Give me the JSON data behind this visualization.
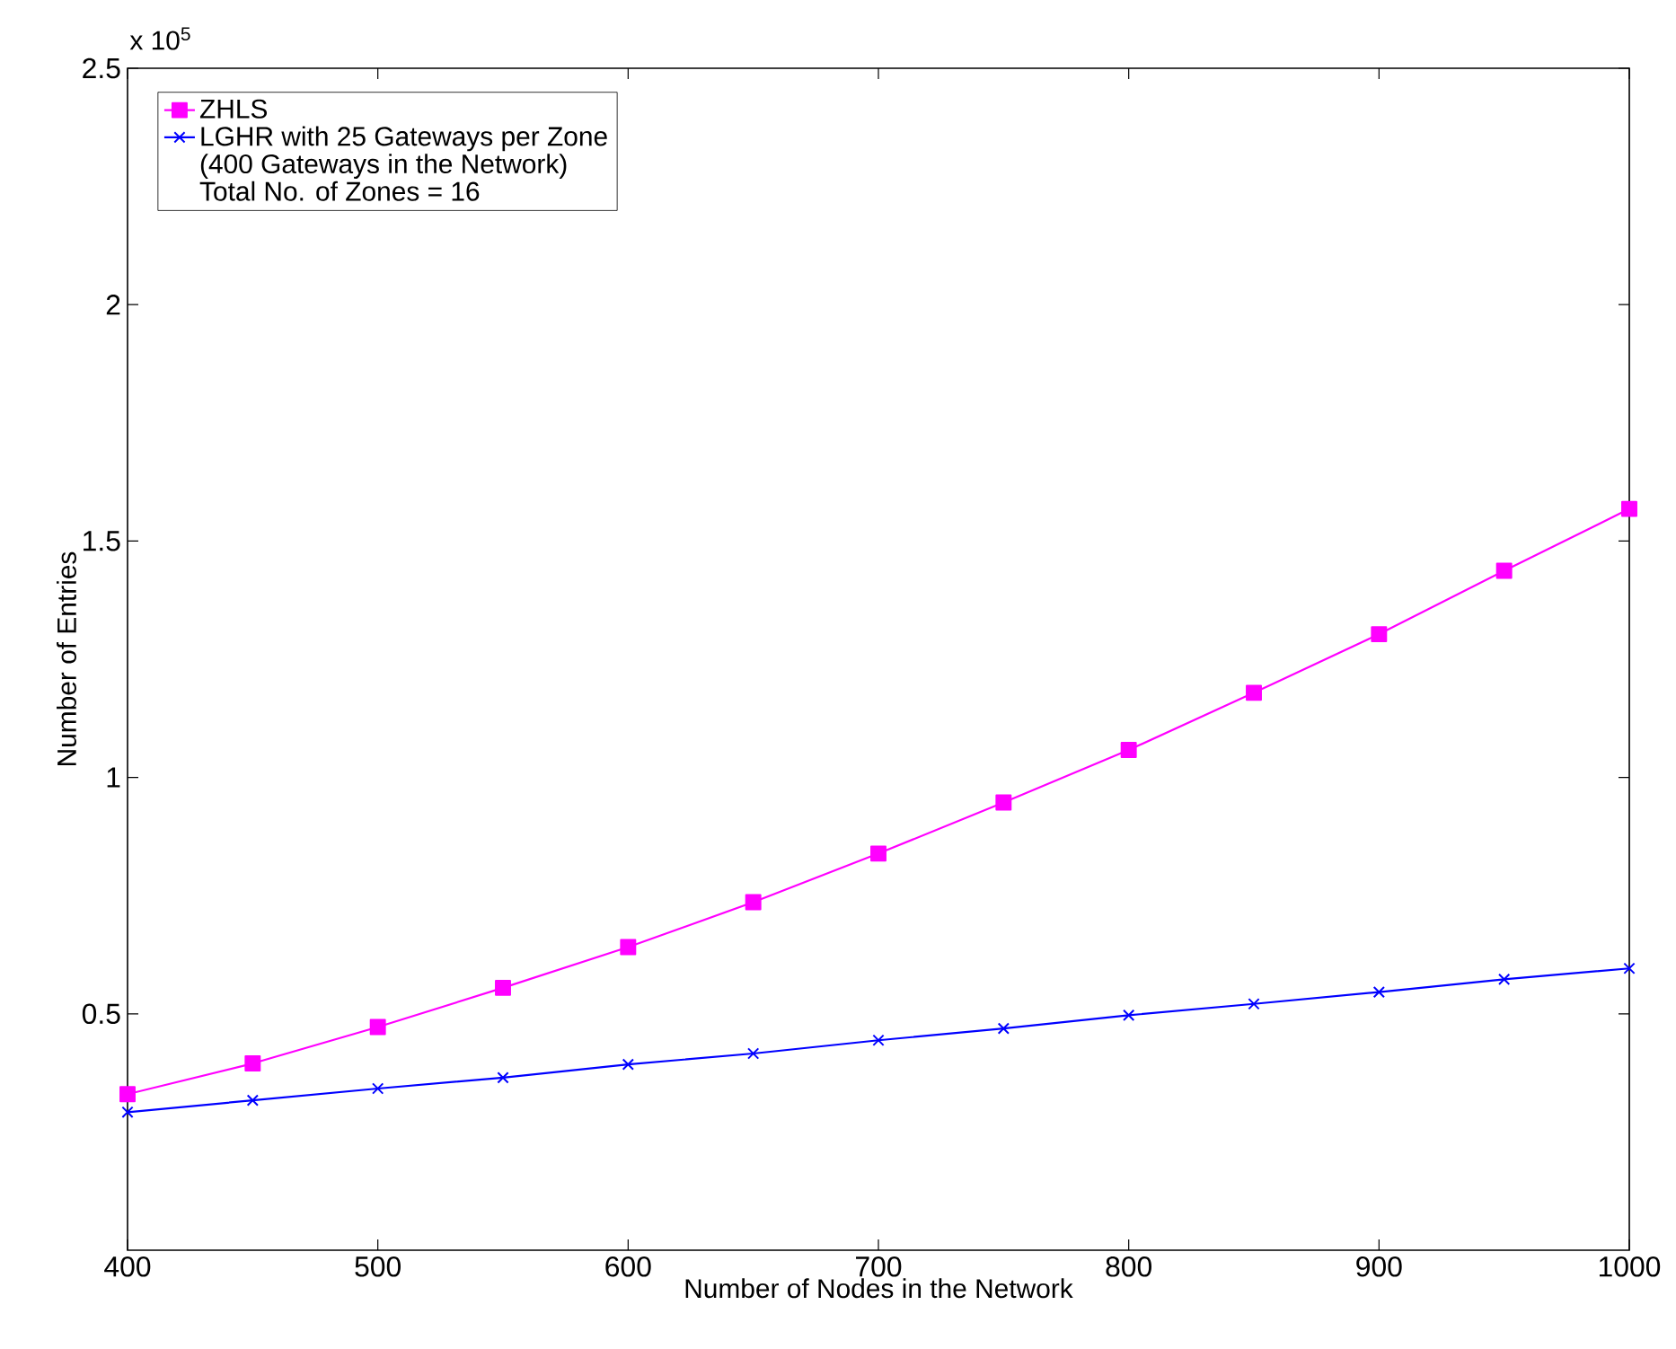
{
  "chart_data": {
    "type": "line",
    "xlabel": "Number of Nodes in the Network",
    "ylabel": "Number of Entries",
    "annotations": [
      "x 10$^{5}$",
      "(400 Gateways in the Network)",
      "Total No. of Zones = 16"
    ],
    "x": [
      400,
      450,
      500,
      550,
      600,
      650,
      700,
      750,
      800,
      850,
      900,
      950,
      1000
    ],
    "series": [
      {
        "name": "ZHLS",
        "color": "#ff00ff",
        "marker": "square",
        "values": [
          0.33,
          0.395,
          0.472,
          0.555,
          0.641,
          0.736,
          0.839,
          0.947,
          1.058,
          1.179,
          1.303,
          1.437,
          1.568
        ]
      },
      {
        "name": "LGHR with 25 Gateways per Zone",
        "color": "#0000ff",
        "marker": "cross",
        "values": [
          0.292,
          0.317,
          0.342,
          0.365,
          0.393,
          0.416,
          0.444,
          0.469,
          0.497,
          0.521,
          0.546,
          0.573,
          0.596
        ]
      }
    ],
    "xlim": [
      400,
      1000
    ],
    "ylim": [
      0,
      2.5
    ],
    "xticks": [
      400,
      500,
      600,
      700,
      800,
      900,
      1000
    ],
    "yticks": [
      0.5,
      1,
      1.5,
      2,
      2.5
    ],
    "legend": "top left",
    "grid": false
  }
}
